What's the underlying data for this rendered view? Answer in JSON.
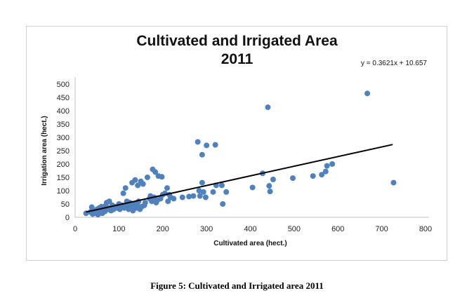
{
  "chart_data": {
    "type": "scatter",
    "title": "Cultivated and Irrigated Area",
    "subtitle": "2011",
    "xlabel": "Cultivated area (hect.)",
    "ylabel": "Irrigation area (hect.)",
    "xlim": [
      0,
      800
    ],
    "ylim": [
      0,
      500
    ],
    "xticks": [
      "0",
      "100",
      "200",
      "300",
      "400",
      "500",
      "600",
      "700",
      "800"
    ],
    "yticks": [
      "0",
      "50",
      "100",
      "150",
      "200",
      "250",
      "300",
      "350",
      "400",
      "450",
      "500"
    ],
    "trendline": {
      "equation": "y = 0.3621x + 10.657",
      "slope": 0.3621,
      "intercept": 10.657,
      "x_range": [
        25,
        725
      ]
    },
    "grid": false,
    "marker_color": "#4f81bd",
    "points": [
      [
        25,
        15
      ],
      [
        35,
        20
      ],
      [
        38,
        38
      ],
      [
        40,
        12
      ],
      [
        45,
        25
      ],
      [
        48,
        15
      ],
      [
        50,
        30
      ],
      [
        52,
        10
      ],
      [
        55,
        35
      ],
      [
        58,
        20
      ],
      [
        60,
        40
      ],
      [
        62,
        15
      ],
      [
        65,
        28
      ],
      [
        68,
        22
      ],
      [
        70,
        45
      ],
      [
        72,
        55
      ],
      [
        75,
        30
      ],
      [
        78,
        60
      ],
      [
        80,
        35
      ],
      [
        82,
        25
      ],
      [
        85,
        45
      ],
      [
        88,
        30
      ],
      [
        90,
        40
      ],
      [
        95,
        35
      ],
      [
        100,
        50
      ],
      [
        102,
        30
      ],
      [
        105,
        38
      ],
      [
        108,
        45
      ],
      [
        110,
        90
      ],
      [
        112,
        35
      ],
      [
        115,
        110
      ],
      [
        118,
        60
      ],
      [
        120,
        45
      ],
      [
        122,
        30
      ],
      [
        125,
        55
      ],
      [
        128,
        40
      ],
      [
        130,
        130
      ],
      [
        132,
        25
      ],
      [
        135,
        50
      ],
      [
        137,
        140
      ],
      [
        140,
        35
      ],
      [
        142,
        45
      ],
      [
        143,
        120
      ],
      [
        145,
        60
      ],
      [
        148,
        30
      ],
      [
        150,
        135
      ],
      [
        152,
        40
      ],
      [
        155,
        125
      ],
      [
        158,
        45
      ],
      [
        160,
        55
      ],
      [
        165,
        150
      ],
      [
        170,
        70
      ],
      [
        172,
        80
      ],
      [
        175,
        60
      ],
      [
        177,
        180
      ],
      [
        180,
        75
      ],
      [
        183,
        170
      ],
      [
        185,
        55
      ],
      [
        188,
        65
      ],
      [
        190,
        155
      ],
      [
        195,
        70
      ],
      [
        198,
        152
      ],
      [
        200,
        85
      ],
      [
        205,
        90
      ],
      [
        210,
        110
      ],
      [
        212,
        60
      ],
      [
        215,
        85
      ],
      [
        218,
        75
      ],
      [
        225,
        70
      ],
      [
        245,
        75
      ],
      [
        260,
        78
      ],
      [
        270,
        80
      ],
      [
        280,
        283
      ],
      [
        283,
        100
      ],
      [
        285,
        80
      ],
      [
        290,
        235
      ],
      [
        290,
        130
      ],
      [
        293,
        95
      ],
      [
        298,
        75
      ],
      [
        300,
        270
      ],
      [
        315,
        95
      ],
      [
        320,
        272
      ],
      [
        322,
        120
      ],
      [
        335,
        120
      ],
      [
        337,
        50
      ],
      [
        345,
        95
      ],
      [
        405,
        112
      ],
      [
        428,
        165
      ],
      [
        440,
        413
      ],
      [
        443,
        118
      ],
      [
        445,
        97
      ],
      [
        452,
        142
      ],
      [
        497,
        147
      ],
      [
        543,
        155
      ],
      [
        563,
        160
      ],
      [
        572,
        172
      ],
      [
        575,
        193
      ],
      [
        587,
        200
      ],
      [
        667,
        465
      ],
      [
        727,
        130
      ]
    ]
  },
  "caption": "Figure 5: Cultivated and Irrigated area 2011"
}
